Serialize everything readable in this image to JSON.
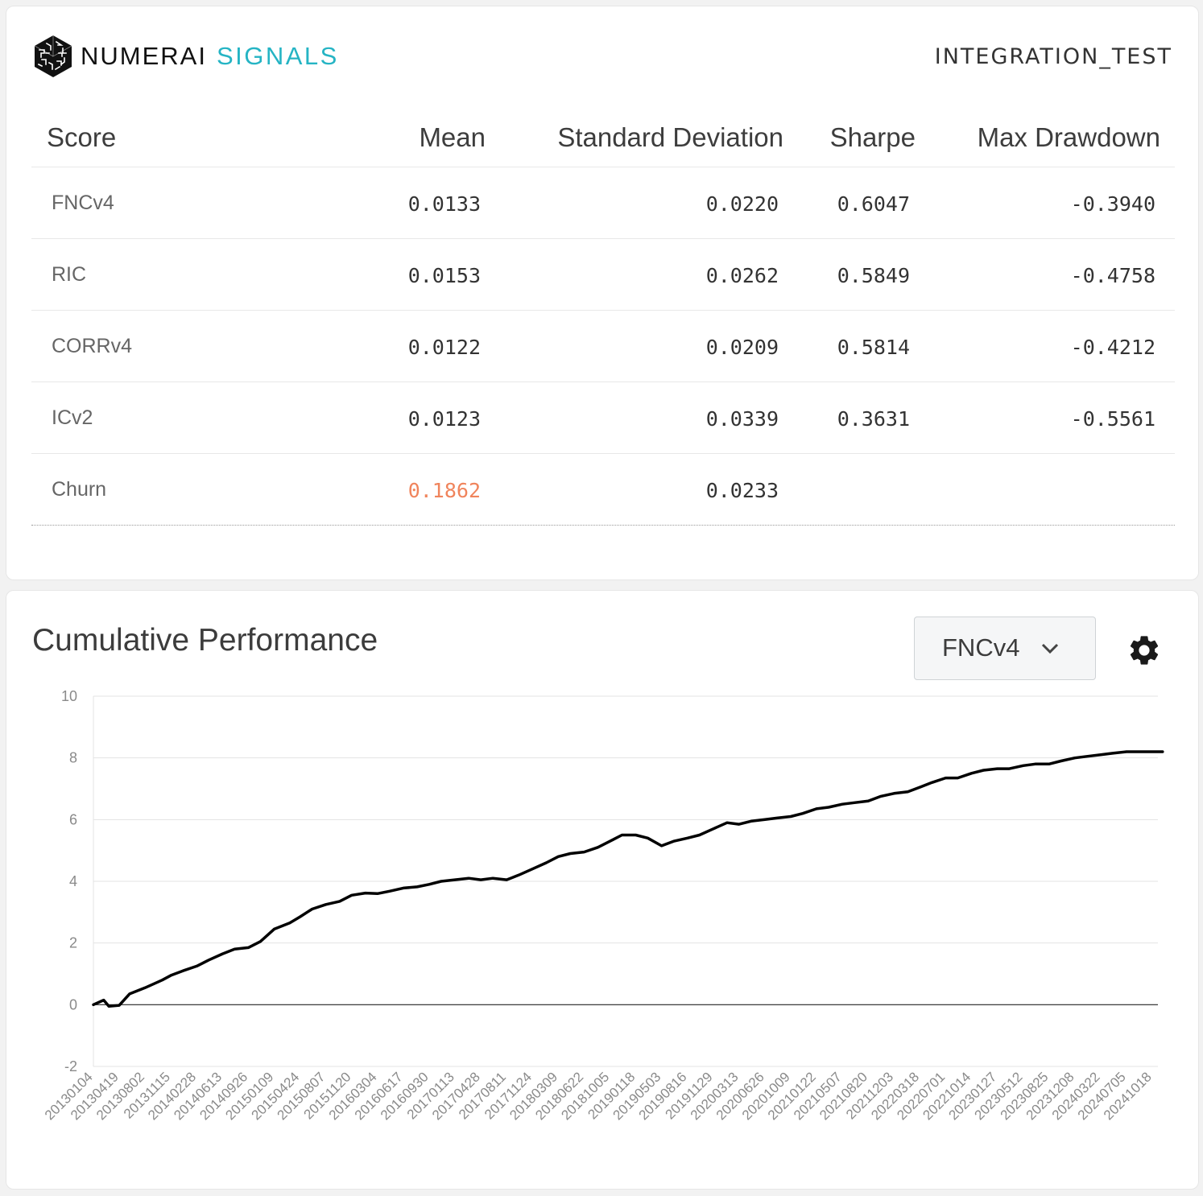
{
  "header": {
    "brand_word1": "NUMERAI",
    "brand_word2": "SIGNALS",
    "model_name": "INTEGRATION_TEST",
    "logo_icon": "numerai-cube-logo-icon",
    "brand_accent": "#25b4c4"
  },
  "table": {
    "headers": {
      "score": "Score",
      "mean": "Mean",
      "std": "Standard Deviation",
      "sharpe": "Sharpe",
      "mdd": "Max Drawdown"
    },
    "rows": [
      {
        "label": "FNCv4",
        "mean": "0.0133",
        "std": "0.0220",
        "sharpe": "0.6047",
        "mdd": "-0.3940"
      },
      {
        "label": "RIC",
        "mean": "0.0153",
        "std": "0.0262",
        "sharpe": "0.5849",
        "mdd": "-0.4758"
      },
      {
        "label": "CORRv4",
        "mean": "0.0122",
        "std": "0.0209",
        "sharpe": "0.5814",
        "mdd": "-0.4212"
      },
      {
        "label": "ICv2",
        "mean": "0.0123",
        "std": "0.0339",
        "sharpe": "0.3631",
        "mdd": "-0.5561"
      },
      {
        "label": "Churn",
        "mean": "0.1862",
        "std": "0.0233",
        "sharpe": "",
        "mdd": ""
      }
    ],
    "highlight_color": "#f0845c"
  },
  "chart_panel": {
    "title": "Cumulative Performance",
    "selected_metric": "FNCv4",
    "dropdown_icon": "chevron-down-icon",
    "settings_icon": "gear-icon"
  },
  "chart_data": {
    "type": "line",
    "title": "",
    "xlabel": "",
    "ylabel": "",
    "ylim": [
      -2,
      10
    ],
    "yticks": [
      -2,
      0,
      2,
      4,
      6,
      8,
      10
    ],
    "grid": true,
    "legend": "none",
    "x_tick_labels": [
      "20130104",
      "20130419",
      "20130802",
      "20131115",
      "20140228",
      "20140613",
      "20140926",
      "20150109",
      "20150424",
      "20150807",
      "20151120",
      "20160304",
      "20160617",
      "20160930",
      "20170113",
      "20170428",
      "20170811",
      "20171124",
      "20180309",
      "20180622",
      "20181005",
      "20190118",
      "20190503",
      "20190816",
      "20191129",
      "20200313",
      "20200626",
      "20201009",
      "20210122",
      "20210507",
      "20210820",
      "20211203",
      "20220318",
      "20220701",
      "20221014",
      "20230127",
      "20230512",
      "20230825",
      "20231208",
      "20240322",
      "20240705",
      "20241018"
    ],
    "series": [
      {
        "name": "",
        "color": "#000000",
        "x": [
          "20130104",
          "20130215",
          "20130308",
          "20130419",
          "20130531",
          "20130802",
          "20131011",
          "20131115",
          "20140103",
          "20140228",
          "20140418",
          "20140613",
          "20140801",
          "20140926",
          "20141114",
          "20150109",
          "20150313",
          "20150424",
          "20150612",
          "20150807",
          "20151002",
          "20151120",
          "20160115",
          "20160304",
          "20160422",
          "20160617",
          "20160812",
          "20160930",
          "20161118",
          "20170113",
          "20170310",
          "20170428",
          "20170616",
          "20170811",
          "20170929",
          "20171124",
          "20180119",
          "20180309",
          "20180427",
          "20180622",
          "20180817",
          "20181005",
          "20181123",
          "20190118",
          "20190308",
          "20190503",
          "20190621",
          "20190816",
          "20191004",
          "20191129",
          "20200124",
          "20200313",
          "20200501",
          "20200626",
          "20200814",
          "20201009",
          "20201127",
          "20210122",
          "20210312",
          "20210507",
          "20210625",
          "20210820",
          "20211008",
          "20211203",
          "20220128",
          "20220318",
          "20220506",
          "20220701",
          "20220819",
          "20221014",
          "20221202",
          "20230127",
          "20230317",
          "20230512",
          "20230630",
          "20230825",
          "20231013",
          "20231208",
          "20240126",
          "20240322",
          "20240510",
          "20240705",
          "20240823",
          "20241018",
          "20241129"
        ],
        "values": [
          0.0,
          0.15,
          -0.05,
          -0.02,
          0.35,
          0.55,
          0.8,
          0.95,
          1.1,
          1.25,
          1.45,
          1.65,
          1.8,
          1.85,
          2.05,
          2.45,
          2.65,
          2.85,
          3.1,
          3.25,
          3.35,
          3.55,
          3.62,
          3.6,
          3.68,
          3.78,
          3.82,
          3.9,
          4.0,
          4.05,
          4.1,
          4.05,
          4.1,
          4.05,
          4.2,
          4.4,
          4.6,
          4.8,
          4.9,
          4.95,
          5.1,
          5.3,
          5.5,
          5.5,
          5.4,
          5.15,
          5.3,
          5.4,
          5.5,
          5.7,
          5.9,
          5.85,
          5.95,
          6.0,
          6.05,
          6.1,
          6.2,
          6.35,
          6.4,
          6.5,
          6.55,
          6.6,
          6.75,
          6.85,
          6.9,
          7.05,
          7.2,
          7.35,
          7.35,
          7.5,
          7.6,
          7.65,
          7.65,
          7.75,
          7.8,
          7.8,
          7.9,
          8.0,
          8.05,
          8.1,
          8.15,
          8.2,
          8.2,
          8.2,
          8.2
        ]
      }
    ]
  }
}
